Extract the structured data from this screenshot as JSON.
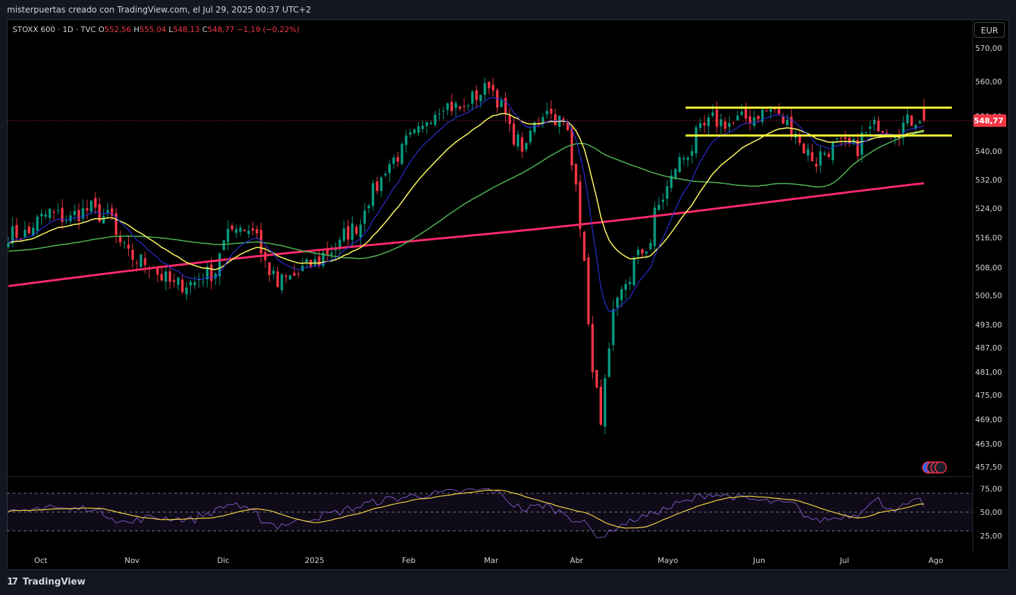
{
  "header": {
    "caption": "misterpuertas creado con TradingView.com, el Jul 29, 2025 00:37 UTC+2"
  },
  "legend": {
    "symbol": "STOXX 600 · 1D · TVC",
    "open_label": "O",
    "open": "552,56",
    "high_label": "H",
    "high": "555,04",
    "low_label": "L",
    "low": "548,13",
    "close_label": "C",
    "close": "548,77",
    "change": "−1,19 (−0,22%)"
  },
  "currency_button": "EUR",
  "last_price_tag": "548,77",
  "brand": "TradingView",
  "colors": {
    "up": "#089981",
    "down": "#f23645",
    "ema_fast": "#2b2fd6",
    "ema_mid": "#f7f25e",
    "sma_100": "#4caf50",
    "sma_200": "#ff2a68",
    "levels": "#ffff33",
    "rsi": "#7e57c2",
    "rsi_ma": "#f7d640"
  },
  "chart_data": [
    {
      "type": "candlestick",
      "price_axis": {
        "tick_labels": [
          "570,00",
          "560,00",
          "550,00",
          "540,00",
          "532,00",
          "524,00",
          "516,00",
          "508,00",
          "500,50",
          "493,00",
          "487,00",
          "481,00",
          "475,00",
          "469,00",
          "463,00",
          "457,50"
        ],
        "range": [
          457.5,
          570
        ]
      },
      "time_axis": {
        "tick_labels": [
          "Oct",
          "Nov",
          "Dic",
          "2025",
          "Feb",
          "Mar",
          "Abr",
          "Mayo",
          "Jun",
          "Jul",
          "Ago"
        ]
      },
      "anchors": [
        [
          "2024-09-27",
          517
        ],
        [
          "2024-10-04",
          523
        ],
        [
          "2024-10-11",
          521
        ],
        [
          "2024-10-18",
          524
        ],
        [
          "2024-10-25",
          521
        ],
        [
          "2024-10-31",
          511
        ],
        [
          "2024-11-08",
          509
        ],
        [
          "2024-11-15",
          503
        ],
        [
          "2024-11-22",
          504
        ],
        [
          "2024-11-29",
          507
        ],
        [
          "2024-12-06",
          520
        ],
        [
          "2024-12-13",
          518
        ],
        [
          "2024-12-20",
          503
        ],
        [
          "2024-12-31",
          508
        ],
        [
          "2025-01-10",
          514
        ],
        [
          "2025-01-17",
          520
        ],
        [
          "2025-01-24",
          532
        ],
        [
          "2025-01-31",
          540
        ],
        [
          "2025-02-07",
          546
        ],
        [
          "2025-02-14",
          554
        ],
        [
          "2025-02-21",
          552
        ],
        [
          "2025-03-03",
          560
        ],
        [
          "2025-03-07",
          550
        ],
        [
          "2025-03-14",
          540
        ],
        [
          "2025-03-21",
          553
        ],
        [
          "2025-03-27",
          548
        ],
        [
          "2025-04-01",
          533
        ],
        [
          "2025-04-04",
          495
        ],
        [
          "2025-04-09",
          470
        ],
        [
          "2025-04-11",
          485
        ],
        [
          "2025-04-17",
          504
        ],
        [
          "2025-04-25",
          515
        ],
        [
          "2025-05-02",
          532
        ],
        [
          "2025-05-09",
          541
        ],
        [
          "2025-05-16",
          549
        ],
        [
          "2025-05-23",
          548
        ],
        [
          "2025-05-30",
          550
        ],
        [
          "2025-06-06",
          552
        ],
        [
          "2025-06-13",
          546
        ],
        [
          "2025-06-20",
          537
        ],
        [
          "2025-06-27",
          542
        ],
        [
          "2025-07-04",
          541
        ],
        [
          "2025-07-11",
          548
        ],
        [
          "2025-07-18",
          546
        ],
        [
          "2025-07-25",
          550
        ],
        [
          "2025-07-28",
          548.77
        ]
      ],
      "last": {
        "open": 552.56,
        "high": 555.04,
        "low": 548.13,
        "close": 548.77
      },
      "horizontal_levels": [
        552.5,
        544.5
      ],
      "moving_averages": [
        "EMA fast",
        "EMA mid",
        "SMA 100",
        "SMA 200"
      ]
    },
    {
      "type": "line",
      "y_axis": {
        "tick_labels": [
          "75,00",
          "50,00",
          "25,00"
        ],
        "range": [
          20,
          80
        ],
        "bands": [
          70,
          50,
          30
        ]
      },
      "anchors": [
        [
          "2024-09-27",
          49
        ],
        [
          "2024-10-04",
          58
        ],
        [
          "2024-10-11",
          52
        ],
        [
          "2024-10-18",
          55
        ],
        [
          "2024-10-31",
          38
        ],
        [
          "2024-11-08",
          45
        ],
        [
          "2024-11-22",
          42
        ],
        [
          "2024-12-06",
          60
        ],
        [
          "2024-12-20",
          35
        ],
        [
          "2025-01-10",
          50
        ],
        [
          "2025-01-24",
          62
        ],
        [
          "2025-02-07",
          68
        ],
        [
          "2025-02-21",
          72
        ],
        [
          "2025-03-03",
          74
        ],
        [
          "2025-03-14",
          52
        ],
        [
          "2025-03-21",
          58
        ],
        [
          "2025-04-01",
          42
        ],
        [
          "2025-04-09",
          24
        ],
        [
          "2025-04-17",
          38
        ],
        [
          "2025-05-02",
          55
        ],
        [
          "2025-05-16",
          70
        ],
        [
          "2025-05-30",
          63
        ],
        [
          "2025-06-13",
          58
        ],
        [
          "2025-06-20",
          40
        ],
        [
          "2025-07-04",
          48
        ],
        [
          "2025-07-11",
          63
        ],
        [
          "2025-07-18",
          52
        ],
        [
          "2025-07-25",
          62
        ],
        [
          "2025-07-28",
          58
        ]
      ]
    }
  ]
}
